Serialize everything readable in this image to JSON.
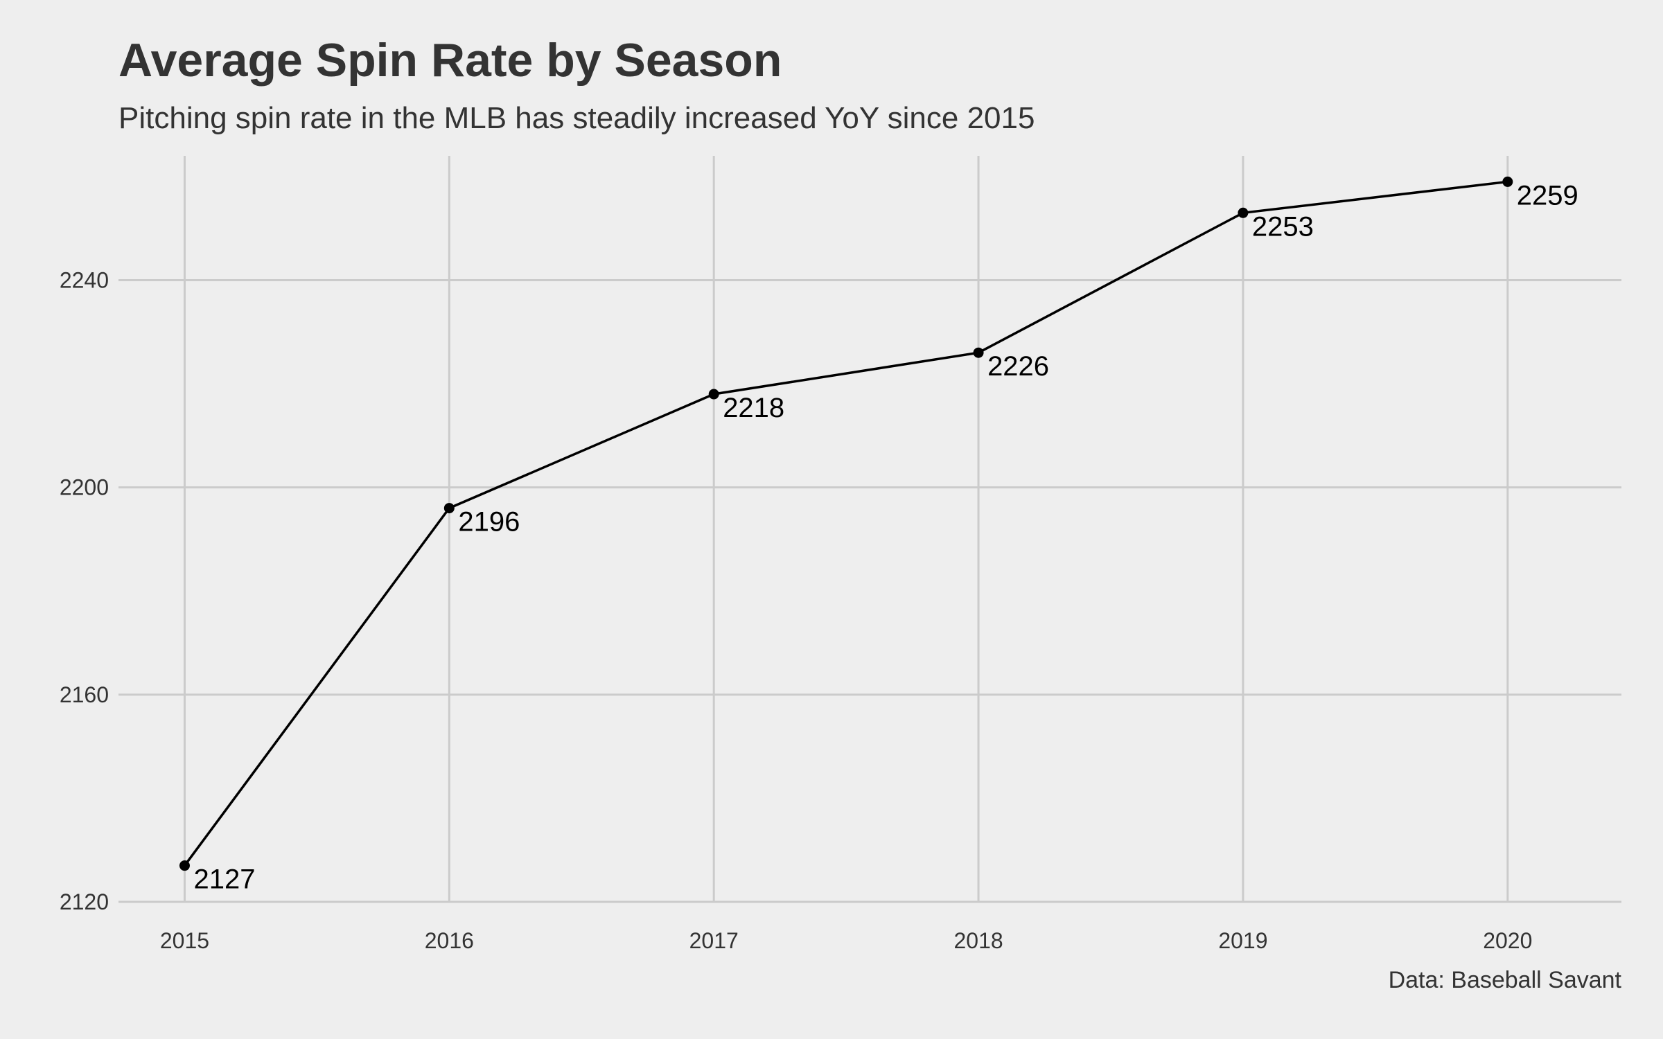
{
  "chart_data": {
    "type": "line",
    "title": "Average Spin Rate by Season",
    "subtitle": "Pitching spin rate in the MLB has steadily increased YoY since 2015",
    "caption": "Data: Baseball Savant",
    "xlabel": "",
    "ylabel": "",
    "x": [
      2015,
      2016,
      2017,
      2018,
      2019,
      2020
    ],
    "x_tick_labels": [
      "2015",
      "2016",
      "2017",
      "2018",
      "2019",
      "2020"
    ],
    "series": [
      {
        "values": [
          2127,
          2196,
          2218,
          2226,
          2253,
          2259
        ],
        "data_labels": [
          "2127",
          "2196",
          "2218",
          "2226",
          "2253",
          "2259"
        ]
      }
    ],
    "y_ticks": [
      2120,
      2160,
      2200,
      2240
    ],
    "y_tick_labels": [
      "2120",
      "2160",
      "2200",
      "2240"
    ],
    "xlim": [
      2014.75,
      2020.43
    ],
    "ylim": [
      2120,
      2264
    ],
    "grid": true,
    "legend": "none",
    "colors": {
      "background": "#eeeeee",
      "grid": "#cbcbcb",
      "line": "#000000",
      "text": "#333333"
    }
  }
}
